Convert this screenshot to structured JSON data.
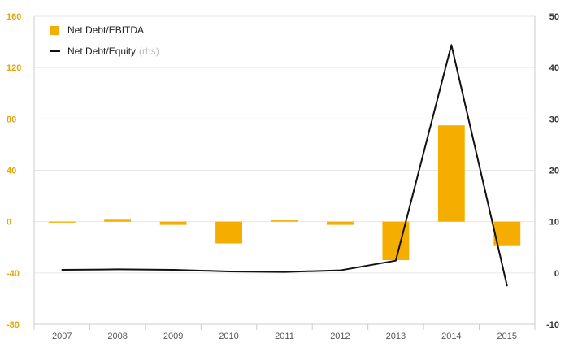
{
  "chart_data": {
    "type": "bar",
    "categories": [
      "2007",
      "2008",
      "2009",
      "2010",
      "2011",
      "2012",
      "2013",
      "2014",
      "2015"
    ],
    "series": [
      {
        "name": "Net Debt/EBITDA",
        "type": "bar",
        "axis": "left",
        "color": "#F5AE00",
        "values": [
          -0.5,
          1.5,
          -2.5,
          -17,
          1,
          -2.5,
          -30,
          75,
          -19
        ]
      },
      {
        "name": "Net Debt/Equity",
        "name_suffix": "(rhs)",
        "type": "line",
        "axis": "right",
        "color": "#111111",
        "values": [
          0.6,
          0.7,
          0.6,
          0.3,
          0.2,
          0.5,
          2.4,
          44.4,
          -2.5
        ]
      }
    ],
    "y_left": {
      "ylim": [
        -80,
        160
      ],
      "ticks": [
        160,
        120,
        80,
        40,
        0,
        -40,
        -80
      ],
      "color": "#E8A500"
    },
    "y_right": {
      "ylim": [
        -10,
        50
      ],
      "ticks": [
        50,
        40,
        30,
        20,
        10,
        0,
        -10
      ],
      "color": "#333333"
    },
    "grid": true,
    "legend_position": "top-left"
  }
}
